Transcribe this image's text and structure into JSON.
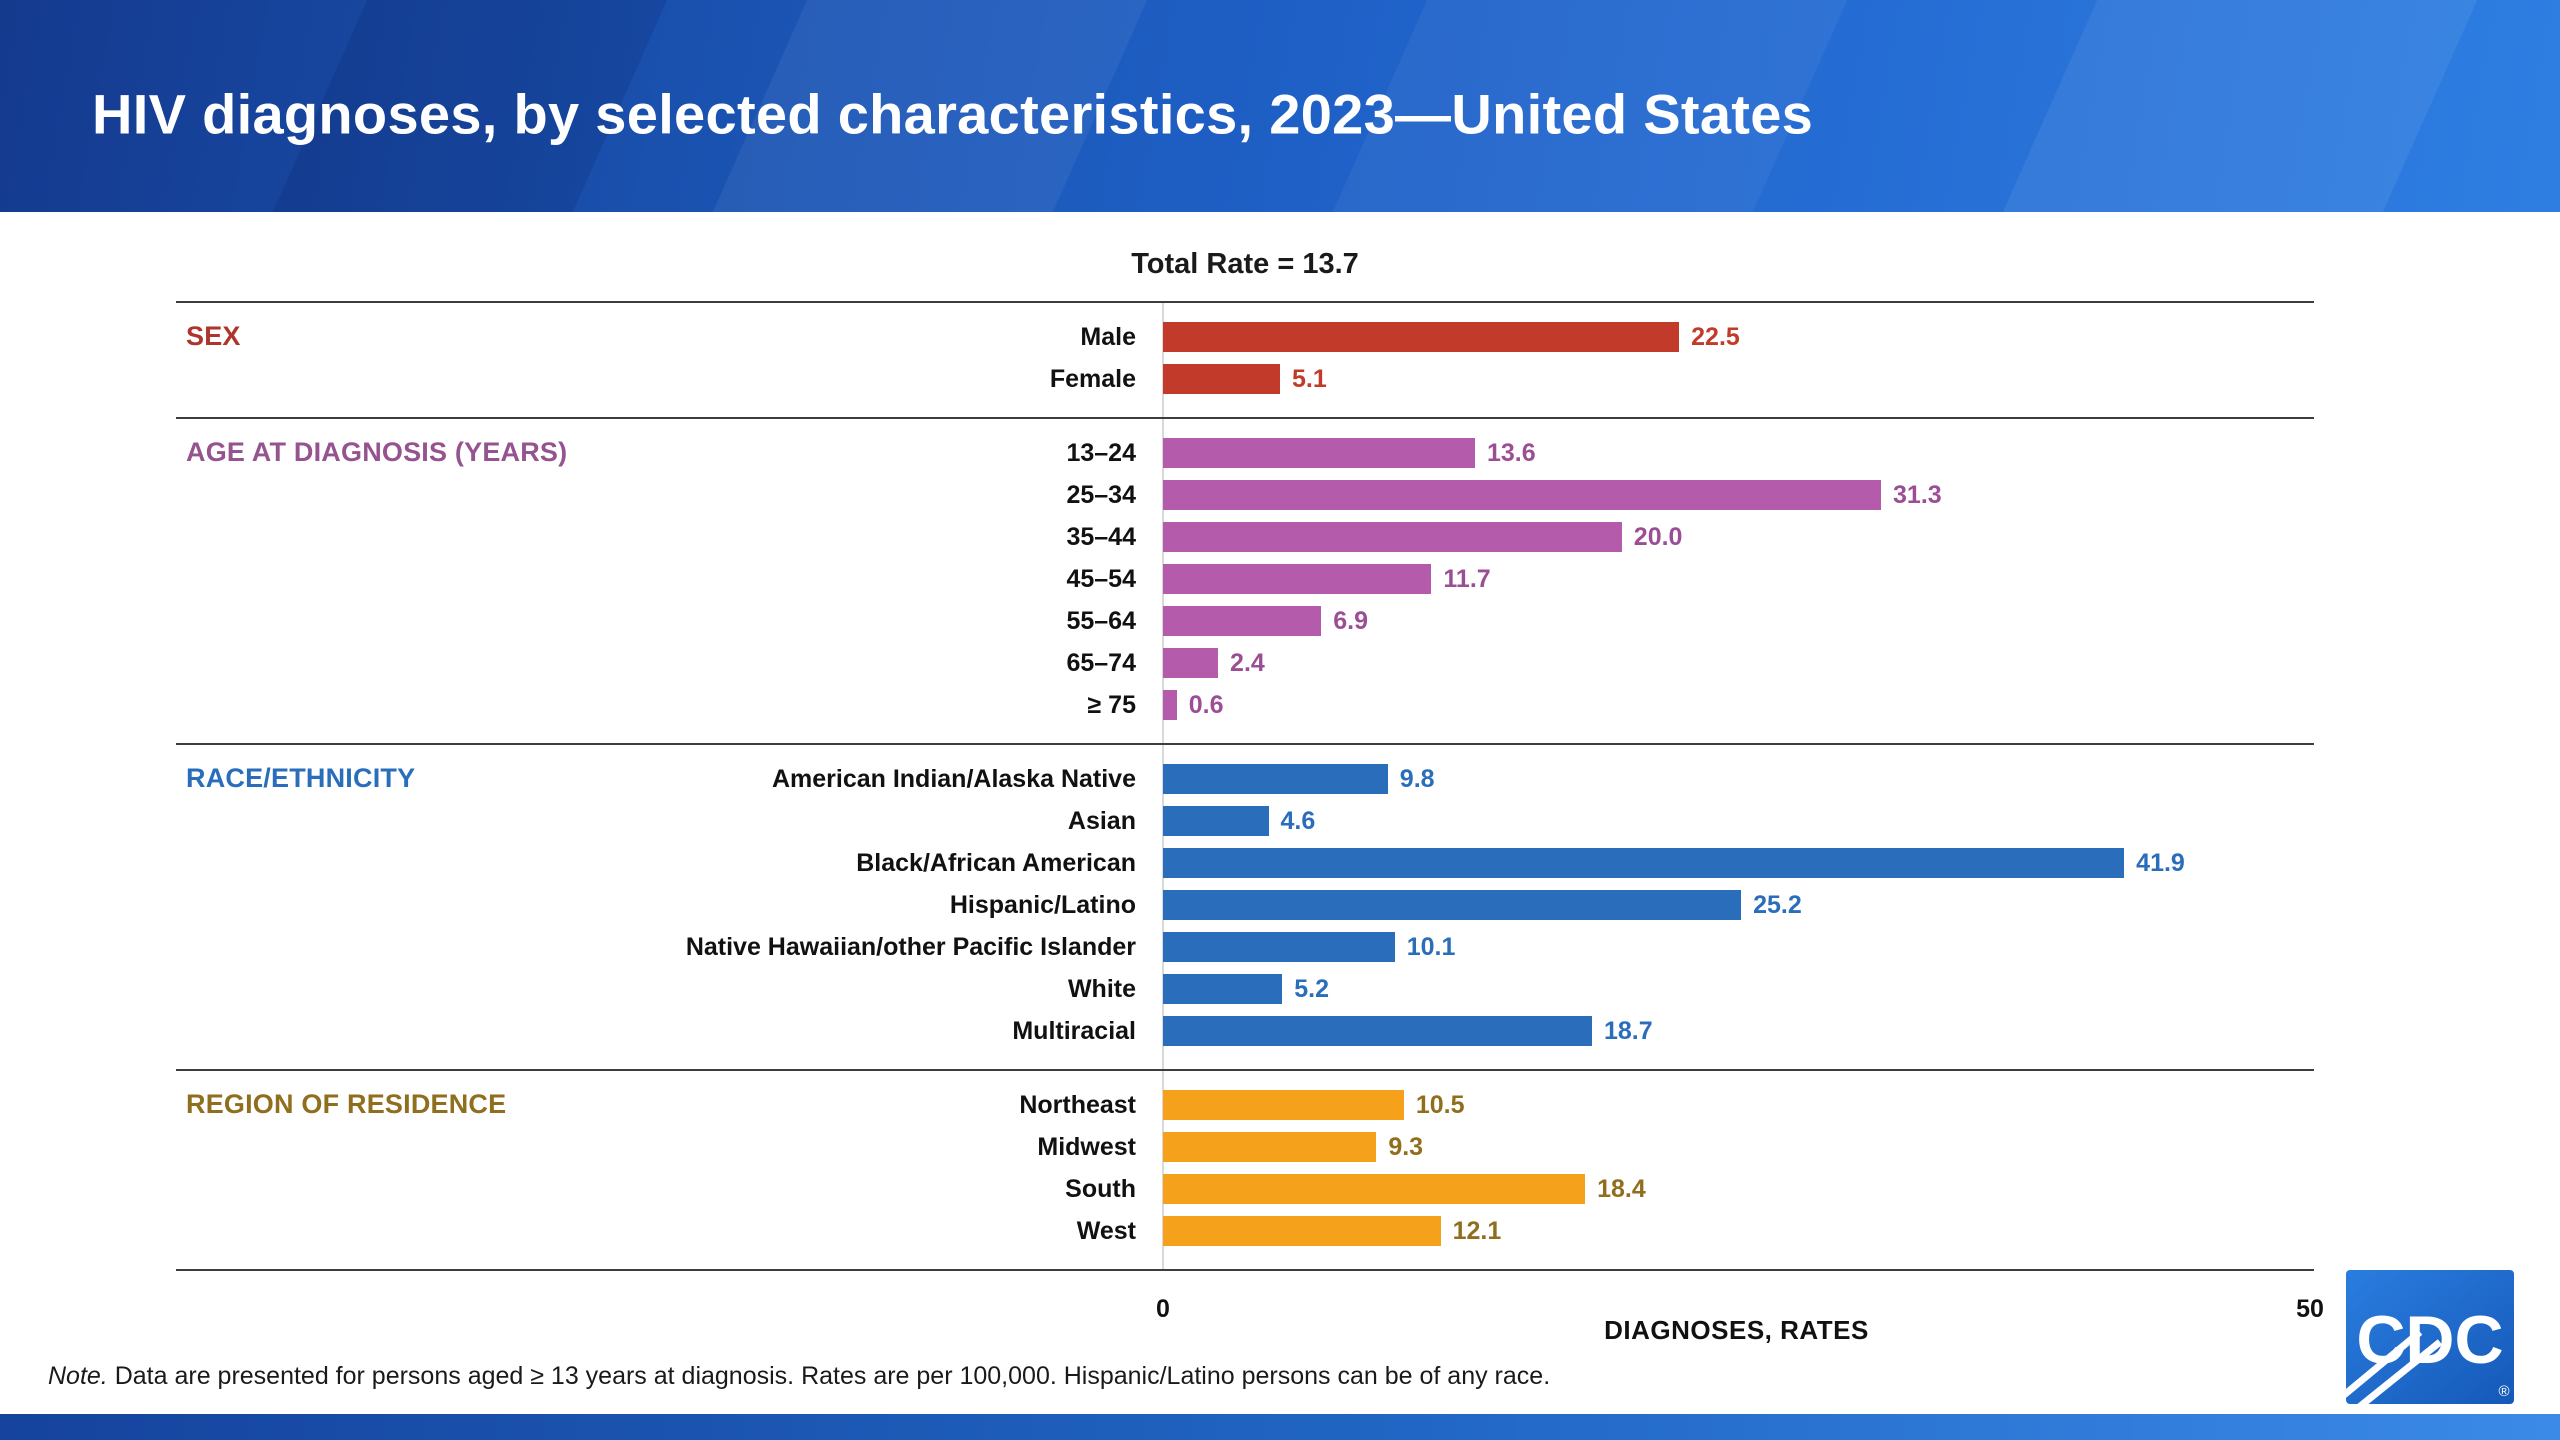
{
  "header": {
    "title": "HIV diagnoses, by selected characteristics, 2023—United States"
  },
  "chart_data": {
    "type": "bar",
    "orientation": "horizontal",
    "title": "Total Rate = 13.7",
    "xlabel": "DIAGNOSES, RATES",
    "xlim": [
      0,
      50
    ],
    "x_ticks": [
      "0",
      "50"
    ],
    "grid": false,
    "legend": "none",
    "groups": [
      {
        "label": "SEX",
        "label_color": "#AE352B",
        "bar_color": "#C23B2A",
        "value_color": "#C23B2A",
        "rows": [
          {
            "category": "Male",
            "value": "22.5"
          },
          {
            "category": "Female",
            "value": "5.1"
          }
        ]
      },
      {
        "label": "AGE AT DIAGNOSIS (YEARS)",
        "label_color": "#95538F",
        "bar_color": "#B45BAC",
        "value_color": "#9C4E95",
        "rows": [
          {
            "category": "13–24",
            "value": "13.6"
          },
          {
            "category": "25–34",
            "value": "31.3"
          },
          {
            "category": "35–44",
            "value": "20.0"
          },
          {
            "category": "45–54",
            "value": "11.7"
          },
          {
            "category": "55–64",
            "value": "6.9"
          },
          {
            "category": "65–74",
            "value": "2.4"
          },
          {
            "category": "≥ 75",
            "value": "0.6"
          }
        ]
      },
      {
        "label": "RACE/ETHNICITY",
        "label_color": "#2A6EBB",
        "bar_color": "#2A6EBB",
        "value_color": "#2A6EBB",
        "rows": [
          {
            "category": "American Indian/Alaska Native",
            "value": "9.8"
          },
          {
            "category": "Asian",
            "value": "4.6"
          },
          {
            "category": "Black/African American",
            "value": "41.9"
          },
          {
            "category": "Hispanic/Latino",
            "value": "25.2"
          },
          {
            "category": "Native Hawaiian/other Pacific Islander",
            "value": "10.1"
          },
          {
            "category": "White",
            "value": "5.2"
          },
          {
            "category": "Multiracial",
            "value": "18.7"
          }
        ]
      },
      {
        "label": "REGION OF RESIDENCE",
        "label_color": "#8F6F1E",
        "bar_color": "#F5A11C",
        "value_color": "#8F6F1E",
        "rows": [
          {
            "category": "Northeast",
            "value": "10.5"
          },
          {
            "category": "Midwest",
            "value": "9.3"
          },
          {
            "category": "South",
            "value": "18.4"
          },
          {
            "category": "West",
            "value": "12.1"
          }
        ]
      }
    ]
  },
  "note": {
    "prefix": "Note.",
    "body": " Data are presented for persons aged ≥ 13 years at diagnosis. Rates are per 100,000. Hispanic/Latino persons can be of any race."
  },
  "logo": {
    "text": "CDC",
    "registered": "®"
  }
}
